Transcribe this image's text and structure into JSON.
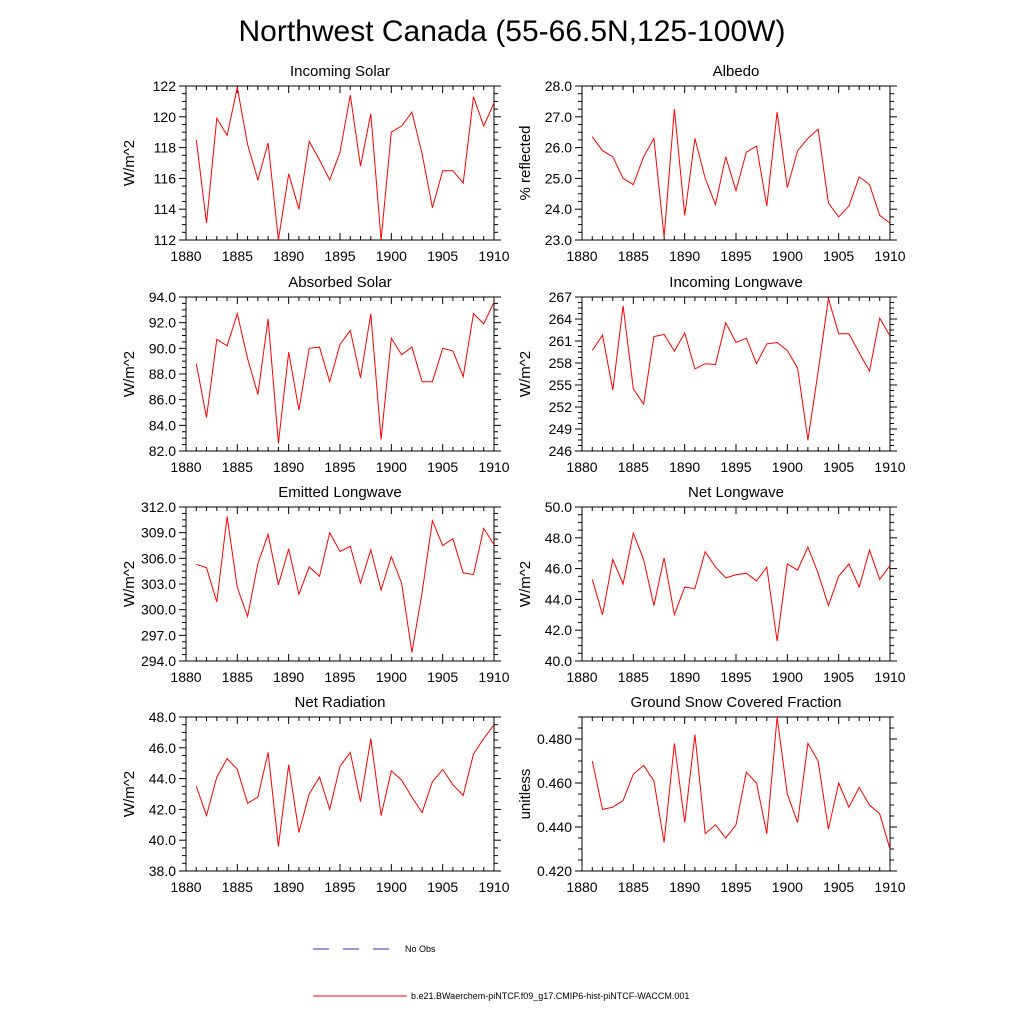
{
  "title": "Northwest Canada (55-66.5N,125-100W)",
  "colors": {
    "model": "#ff0000",
    "obs": "#3333aa",
    "axis": "#000000"
  },
  "legend": [
    {
      "label": "No Obs",
      "style": "dashed",
      "color": "#3333aa"
    },
    {
      "label": "b.e21.BWaerchem-piNTCF.f09_g17.CMIP6-hist-piNTCF-WACCM.001",
      "style": "solid",
      "color": "#ff0000"
    }
  ],
  "chart_data": [
    {
      "type": "line",
      "title": "Incoming Solar",
      "ylabel": "W/m^2",
      "xlim": [
        1880,
        1910
      ],
      "ylim": [
        112,
        122
      ],
      "xticks": [
        1880,
        1885,
        1890,
        1895,
        1900,
        1905,
        1910
      ],
      "xtick_labels": [
        "1880",
        "1885",
        "1890",
        "1895",
        "1900",
        "1905",
        "1910"
      ],
      "yticks": [
        112,
        114,
        116,
        118,
        120,
        122
      ],
      "ytick_labels": [
        "112",
        "114",
        "116",
        "118",
        "120",
        "122"
      ],
      "x": [
        1881,
        1882,
        1883,
        1884,
        1885,
        1886,
        1887,
        1888,
        1889,
        1890,
        1891,
        1892,
        1893,
        1894,
        1895,
        1896,
        1897,
        1898,
        1899,
        1900,
        1901,
        1902,
        1903,
        1904,
        1905,
        1906,
        1907,
        1908,
        1909,
        1910
      ],
      "values": [
        118.5,
        113.1,
        119.9,
        118.8,
        121.9,
        118.2,
        115.9,
        118.3,
        112.0,
        116.3,
        114.0,
        118.4,
        117.2,
        115.9,
        117.7,
        121.4,
        116.8,
        120.2,
        112.0,
        119.0,
        119.4,
        120.3,
        117.6,
        114.1,
        116.5,
        116.5,
        115.7,
        121.3,
        119.4,
        120.9
      ]
    },
    {
      "type": "line",
      "title": "Albedo",
      "ylabel": "% reflected",
      "xlim": [
        1880,
        1910
      ],
      "ylim": [
        23.0,
        28.0
      ],
      "xticks": [
        1880,
        1885,
        1890,
        1895,
        1900,
        1905,
        1910
      ],
      "xtick_labels": [
        "1880",
        "1885",
        "1890",
        "1895",
        "1900",
        "1905",
        "1910"
      ],
      "yticks": [
        23,
        24,
        25,
        26,
        27,
        28
      ],
      "ytick_labels": [
        "23.0",
        "24.0",
        "25.0",
        "26.0",
        "27.0",
        "28.0"
      ],
      "x": [
        1881,
        1882,
        1883,
        1884,
        1885,
        1886,
        1887,
        1888,
        1889,
        1890,
        1891,
        1892,
        1893,
        1894,
        1895,
        1896,
        1897,
        1898,
        1899,
        1900,
        1901,
        1902,
        1903,
        1904,
        1905,
        1906,
        1907,
        1908,
        1909,
        1910
      ],
      "values": [
        26.35,
        25.9,
        25.7,
        25.0,
        24.8,
        25.7,
        26.3,
        23.1,
        27.25,
        23.8,
        26.3,
        25.0,
        24.15,
        25.7,
        24.6,
        25.85,
        26.05,
        24.1,
        27.15,
        24.7,
        25.9,
        26.3,
        26.6,
        24.2,
        23.75,
        24.1,
        25.05,
        24.8,
        23.8,
        23.55
      ]
    },
    {
      "type": "line",
      "title": "Absorbed Solar",
      "ylabel": "W/m^2",
      "xlim": [
        1880,
        1910
      ],
      "ylim": [
        82.0,
        94.0
      ],
      "xticks": [
        1880,
        1885,
        1890,
        1895,
        1900,
        1905,
        1910
      ],
      "xtick_labels": [
        "1880",
        "1885",
        "1890",
        "1895",
        "1900",
        "1905",
        "1910"
      ],
      "yticks": [
        82,
        84,
        86,
        88,
        90,
        92,
        94
      ],
      "ytick_labels": [
        "82.0",
        "84.0",
        "86.0",
        "88.0",
        "90.0",
        "92.0",
        "94.0"
      ],
      "x": [
        1881,
        1882,
        1883,
        1884,
        1885,
        1886,
        1887,
        1888,
        1889,
        1890,
        1891,
        1892,
        1893,
        1894,
        1895,
        1896,
        1897,
        1898,
        1899,
        1900,
        1901,
        1902,
        1903,
        1904,
        1905,
        1906,
        1907,
        1908,
        1909,
        1910
      ],
      "values": [
        88.8,
        84.6,
        90.7,
        90.2,
        92.7,
        89.2,
        86.4,
        92.3,
        82.6,
        89.7,
        85.2,
        90.0,
        90.1,
        87.4,
        90.3,
        91.4,
        87.7,
        92.7,
        82.9,
        90.8,
        89.5,
        90.1,
        87.4,
        87.4,
        90.0,
        89.8,
        87.8,
        92.7,
        91.9,
        93.6
      ]
    },
    {
      "type": "line",
      "title": "Incoming Longwave",
      "ylabel": "W/m^2",
      "xlim": [
        1880,
        1910
      ],
      "ylim": [
        246,
        267
      ],
      "xticks": [
        1880,
        1885,
        1890,
        1895,
        1900,
        1905,
        1910
      ],
      "xtick_labels": [
        "1880",
        "1885",
        "1890",
        "1895",
        "1900",
        "1905",
        "1910"
      ],
      "yticks": [
        246,
        249,
        252,
        255,
        258,
        261,
        264,
        267
      ],
      "ytick_labels": [
        "246",
        "249",
        "252",
        "255",
        "258",
        "261",
        "264",
        "267"
      ],
      "x": [
        1881,
        1882,
        1883,
        1884,
        1885,
        1886,
        1887,
        1888,
        1889,
        1890,
        1891,
        1892,
        1893,
        1894,
        1895,
        1896,
        1897,
        1898,
        1899,
        1900,
        1901,
        1902,
        1903,
        1904,
        1905,
        1906,
        1907,
        1908,
        1909,
        1910
      ],
      "values": [
        259.7,
        261.8,
        254.3,
        265.8,
        254.5,
        252.4,
        261.6,
        261.9,
        259.6,
        262.1,
        257.2,
        257.9,
        257.8,
        263.5,
        260.8,
        261.4,
        257.9,
        260.6,
        260.8,
        259.7,
        257.3,
        247.5,
        256.8,
        266.8,
        262.0,
        262.0,
        259.4,
        256.9,
        264.1,
        261.7
      ]
    },
    {
      "type": "line",
      "title": "Emitted Longwave",
      "ylabel": "W/m^2",
      "xlim": [
        1880,
        1910
      ],
      "ylim": [
        294.0,
        312.0
      ],
      "xticks": [
        1880,
        1885,
        1890,
        1895,
        1900,
        1905,
        1910
      ],
      "xtick_labels": [
        "1880",
        "1885",
        "1890",
        "1895",
        "1900",
        "1905",
        "1910"
      ],
      "yticks": [
        294,
        297,
        300,
        303,
        306,
        309,
        312
      ],
      "ytick_labels": [
        "294.0",
        "297.0",
        "300.0",
        "303.0",
        "306.0",
        "309.0",
        "312.0"
      ],
      "x": [
        1881,
        1882,
        1883,
        1884,
        1885,
        1886,
        1887,
        1888,
        1889,
        1890,
        1891,
        1892,
        1893,
        1894,
        1895,
        1896,
        1897,
        1898,
        1899,
        1900,
        1901,
        1902,
        1903,
        1904,
        1905,
        1906,
        1907,
        1908,
        1909,
        1910
      ],
      "values": [
        305.3,
        304.9,
        300.9,
        310.9,
        302.6,
        299.2,
        305.4,
        308.8,
        302.9,
        307.1,
        301.8,
        305.0,
        303.9,
        309.0,
        306.8,
        307.4,
        303.1,
        307.0,
        302.3,
        306.2,
        303.1,
        295.0,
        302.0,
        310.4,
        307.5,
        308.3,
        304.3,
        304.1,
        309.5,
        307.6
      ]
    },
    {
      "type": "line",
      "title": "Net Longwave",
      "ylabel": "W/m^2",
      "xlim": [
        1880,
        1910
      ],
      "ylim": [
        40.0,
        50.0
      ],
      "xticks": [
        1880,
        1885,
        1890,
        1895,
        1900,
        1905,
        1910
      ],
      "xtick_labels": [
        "1880",
        "1885",
        "1890",
        "1895",
        "1900",
        "1905",
        "1910"
      ],
      "yticks": [
        40,
        42,
        44,
        46,
        48,
        50
      ],
      "ytick_labels": [
        "40.0",
        "42.0",
        "44.0",
        "46.0",
        "48.0",
        "50.0"
      ],
      "x": [
        1881,
        1882,
        1883,
        1884,
        1885,
        1886,
        1887,
        1888,
        1889,
        1890,
        1891,
        1892,
        1893,
        1894,
        1895,
        1896,
        1897,
        1898,
        1899,
        1900,
        1901,
        1902,
        1903,
        1904,
        1905,
        1906,
        1907,
        1908,
        1909,
        1910
      ],
      "values": [
        45.3,
        43.0,
        46.6,
        45.0,
        48.3,
        46.6,
        43.6,
        46.7,
        43.0,
        44.8,
        44.7,
        47.1,
        46.1,
        45.4,
        45.6,
        45.7,
        45.2,
        46.1,
        41.3,
        46.3,
        45.9,
        47.4,
        45.7,
        43.6,
        45.5,
        46.3,
        44.8,
        47.2,
        45.3,
        46.2
      ]
    },
    {
      "type": "line",
      "title": "Net Radiation",
      "ylabel": "W/m^2",
      "xlim": [
        1880,
        1910
      ],
      "ylim": [
        38.0,
        48.0
      ],
      "xticks": [
        1880,
        1885,
        1890,
        1895,
        1900,
        1905,
        1910
      ],
      "xtick_labels": [
        "1880",
        "1885",
        "1890",
        "1895",
        "1900",
        "1905",
        "1910"
      ],
      "yticks": [
        38,
        40,
        42,
        44,
        46,
        48
      ],
      "ytick_labels": [
        "38.0",
        "40.0",
        "42.0",
        "44.0",
        "46.0",
        "48.0"
      ],
      "x": [
        1881,
        1882,
        1883,
        1884,
        1885,
        1886,
        1887,
        1888,
        1889,
        1890,
        1891,
        1892,
        1893,
        1894,
        1895,
        1896,
        1897,
        1898,
        1899,
        1900,
        1901,
        1902,
        1903,
        1904,
        1905,
        1906,
        1907,
        1908,
        1909,
        1910
      ],
      "values": [
        43.5,
        41.6,
        44.1,
        45.3,
        44.6,
        42.4,
        42.8,
        45.7,
        39.6,
        44.9,
        40.5,
        43.0,
        44.1,
        42.0,
        44.8,
        45.7,
        42.5,
        46.6,
        41.6,
        44.5,
        43.9,
        42.8,
        41.8,
        43.8,
        44.6,
        43.6,
        42.9,
        45.6,
        46.6,
        47.5
      ]
    },
    {
      "type": "line",
      "title": "Ground Snow Covered Fraction",
      "ylabel": "unitless",
      "xlim": [
        1880,
        1910
      ],
      "ylim": [
        0.42,
        0.49
      ],
      "xticks": [
        1880,
        1885,
        1890,
        1895,
        1900,
        1905,
        1910
      ],
      "xtick_labels": [
        "1880",
        "1885",
        "1890",
        "1895",
        "1900",
        "1905",
        "1910"
      ],
      "yticks": [
        0.42,
        0.44,
        0.46,
        0.48
      ],
      "ytick_labels": [
        "0.420",
        "0.440",
        "0.460",
        "0.480"
      ],
      "x": [
        1881,
        1882,
        1883,
        1884,
        1885,
        1886,
        1887,
        1888,
        1889,
        1890,
        1891,
        1892,
        1893,
        1894,
        1895,
        1896,
        1897,
        1898,
        1899,
        1900,
        1901,
        1902,
        1903,
        1904,
        1905,
        1906,
        1907,
        1908,
        1909,
        1910
      ],
      "values": [
        0.47,
        0.448,
        0.449,
        0.452,
        0.464,
        0.468,
        0.461,
        0.433,
        0.478,
        0.442,
        0.482,
        0.437,
        0.441,
        0.435,
        0.441,
        0.465,
        0.46,
        0.437,
        0.49,
        0.455,
        0.442,
        0.478,
        0.47,
        0.439,
        0.46,
        0.449,
        0.458,
        0.45,
        0.446,
        0.43
      ]
    }
  ]
}
